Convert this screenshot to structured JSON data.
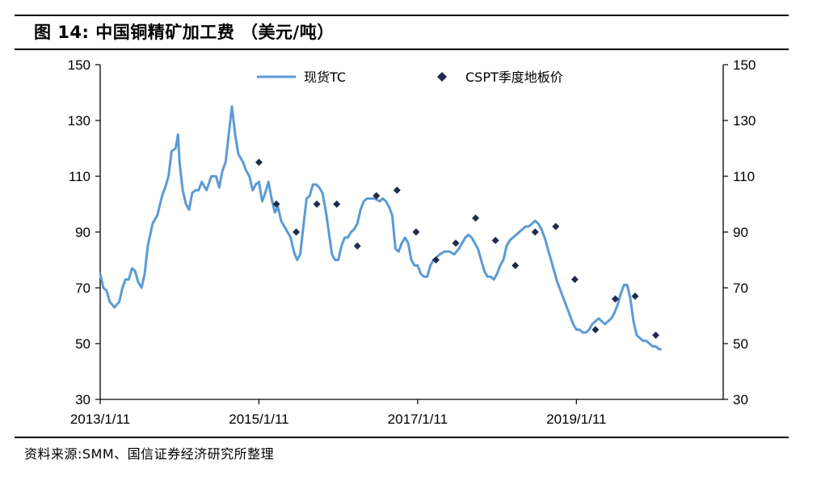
{
  "figure": {
    "title": "图 14:  中国铜精矿加工费  （美元/吨）",
    "source": "资料来源:SMM、国信证券经济研究所整理"
  },
  "colors": {
    "line": "#5b9bd5",
    "marker": "#1f2a4d",
    "axis": "#000000"
  },
  "chart_data": {
    "type": "line",
    "title": "中国铜精矿加工费 （美元/吨）",
    "xlabel": "",
    "ylabel": "",
    "ylim": [
      30,
      150
    ],
    "xlim": [
      2013.0,
      2020.85
    ],
    "y_ticks": [
      "30",
      "50",
      "70",
      "90",
      "110",
      "130",
      "150"
    ],
    "x_tick_labels": [
      {
        "x": 2013.0,
        "label": "2013/1/11"
      },
      {
        "x": 2015.0,
        "label": "2015/1/11"
      },
      {
        "x": 2017.0,
        "label": "2017/1/11"
      },
      {
        "x": 2019.0,
        "label": "2019/1/11"
      }
    ],
    "legend": [
      "现货TC",
      "CSPT季度地板价"
    ],
    "series": [
      {
        "name": "现货TC",
        "kind": "line",
        "points": [
          [
            2013.0,
            75
          ],
          [
            2013.04,
            70
          ],
          [
            2013.08,
            69
          ],
          [
            2013.12,
            65
          ],
          [
            2013.18,
            63
          ],
          [
            2013.24,
            65
          ],
          [
            2013.28,
            70
          ],
          [
            2013.32,
            73
          ],
          [
            2013.36,
            73
          ],
          [
            2013.4,
            77
          ],
          [
            2013.44,
            76
          ],
          [
            2013.48,
            72
          ],
          [
            2013.52,
            70
          ],
          [
            2013.56,
            75
          ],
          [
            2013.6,
            85
          ],
          [
            2013.66,
            93
          ],
          [
            2013.72,
            96
          ],
          [
            2013.78,
            103
          ],
          [
            2013.82,
            106
          ],
          [
            2013.86,
            110
          ],
          [
            2013.9,
            119
          ],
          [
            2013.95,
            120
          ],
          [
            2013.98,
            125
          ],
          [
            2014.0,
            115
          ],
          [
            2014.04,
            105
          ],
          [
            2014.08,
            100
          ],
          [
            2014.12,
            98
          ],
          [
            2014.16,
            104
          ],
          [
            2014.2,
            105
          ],
          [
            2014.24,
            105
          ],
          [
            2014.28,
            108
          ],
          [
            2014.34,
            105
          ],
          [
            2014.4,
            110
          ],
          [
            2014.46,
            110
          ],
          [
            2014.5,
            106
          ],
          [
            2014.54,
            112
          ],
          [
            2014.58,
            115
          ],
          [
            2014.62,
            125
          ],
          [
            2014.66,
            135
          ],
          [
            2014.7,
            125
          ],
          [
            2014.74,
            118
          ],
          [
            2014.8,
            115
          ],
          [
            2014.84,
            112
          ],
          [
            2014.88,
            110
          ],
          [
            2014.92,
            105
          ],
          [
            2014.96,
            107
          ],
          [
            2015.0,
            108
          ],
          [
            2015.04,
            101
          ],
          [
            2015.08,
            104
          ],
          [
            2015.12,
            108
          ],
          [
            2015.16,
            102
          ],
          [
            2015.2,
            97
          ],
          [
            2015.24,
            99
          ],
          [
            2015.28,
            94
          ],
          [
            2015.32,
            92
          ],
          [
            2015.36,
            90
          ],
          [
            2015.4,
            88
          ],
          [
            2015.44,
            83
          ],
          [
            2015.48,
            80
          ],
          [
            2015.52,
            82
          ],
          [
            2015.56,
            92
          ],
          [
            2015.6,
            102
          ],
          [
            2015.64,
            103
          ],
          [
            2015.68,
            107
          ],
          [
            2015.72,
            107
          ],
          [
            2015.76,
            106
          ],
          [
            2015.8,
            104
          ],
          [
            2015.84,
            98
          ],
          [
            2015.88,
            90
          ],
          [
            2015.92,
            82
          ],
          [
            2015.96,
            80
          ],
          [
            2016.0,
            80
          ],
          [
            2016.04,
            85
          ],
          [
            2016.08,
            88
          ],
          [
            2016.12,
            88
          ],
          [
            2016.16,
            90
          ],
          [
            2016.2,
            91
          ],
          [
            2016.24,
            93
          ],
          [
            2016.28,
            98
          ],
          [
            2016.32,
            101
          ],
          [
            2016.36,
            102
          ],
          [
            2016.4,
            102
          ],
          [
            2016.46,
            102
          ],
          [
            2016.52,
            101
          ],
          [
            2016.56,
            102
          ],
          [
            2016.6,
            101
          ],
          [
            2016.64,
            99
          ],
          [
            2016.68,
            96
          ],
          [
            2016.72,
            84
          ],
          [
            2016.76,
            83
          ],
          [
            2016.8,
            86
          ],
          [
            2016.84,
            88
          ],
          [
            2016.88,
            86
          ],
          [
            2016.92,
            80
          ],
          [
            2016.96,
            78
          ],
          [
            2017.0,
            78
          ],
          [
            2017.04,
            75
          ],
          [
            2017.08,
            74
          ],
          [
            2017.12,
            74
          ],
          [
            2017.16,
            78
          ],
          [
            2017.2,
            80
          ],
          [
            2017.24,
            81
          ],
          [
            2017.28,
            82
          ],
          [
            2017.34,
            83
          ],
          [
            2017.4,
            83
          ],
          [
            2017.46,
            82
          ],
          [
            2017.52,
            84
          ],
          [
            2017.56,
            86
          ],
          [
            2017.6,
            88
          ],
          [
            2017.64,
            89
          ],
          [
            2017.68,
            88
          ],
          [
            2017.72,
            86
          ],
          [
            2017.76,
            84
          ],
          [
            2017.8,
            80
          ],
          [
            2017.84,
            76
          ],
          [
            2017.88,
            74
          ],
          [
            2017.92,
            74
          ],
          [
            2017.96,
            73
          ],
          [
            2018.0,
            75
          ],
          [
            2018.04,
            78
          ],
          [
            2018.08,
            80
          ],
          [
            2018.12,
            85
          ],
          [
            2018.16,
            87
          ],
          [
            2018.2,
            88
          ],
          [
            2018.24,
            89
          ],
          [
            2018.28,
            90
          ],
          [
            2018.32,
            91
          ],
          [
            2018.36,
            92
          ],
          [
            2018.4,
            92
          ],
          [
            2018.44,
            93
          ],
          [
            2018.48,
            94
          ],
          [
            2018.52,
            93
          ],
          [
            2018.56,
            91
          ],
          [
            2018.6,
            88
          ],
          [
            2018.64,
            84
          ],
          [
            2018.68,
            80
          ],
          [
            2018.72,
            76
          ],
          [
            2018.76,
            72
          ],
          [
            2018.8,
            69
          ],
          [
            2018.84,
            66
          ],
          [
            2018.88,
            63
          ],
          [
            2018.92,
            60
          ],
          [
            2018.96,
            57
          ],
          [
            2019.0,
            55
          ],
          [
            2019.04,
            55
          ],
          [
            2019.08,
            54
          ],
          [
            2019.12,
            54
          ],
          [
            2019.16,
            55
          ],
          [
            2019.2,
            57
          ],
          [
            2019.24,
            58
          ],
          [
            2019.28,
            59
          ],
          [
            2019.32,
            58
          ],
          [
            2019.36,
            57
          ],
          [
            2019.4,
            58
          ],
          [
            2019.44,
            59
          ],
          [
            2019.48,
            61
          ],
          [
            2019.52,
            64
          ],
          [
            2019.56,
            68
          ],
          [
            2019.6,
            71
          ],
          [
            2019.64,
            71
          ],
          [
            2019.68,
            66
          ],
          [
            2019.72,
            58
          ],
          [
            2019.76,
            53
          ],
          [
            2019.8,
            52
          ],
          [
            2019.84,
            51
          ],
          [
            2019.88,
            51
          ],
          [
            2019.92,
            50
          ],
          [
            2019.96,
            49
          ],
          [
            2020.0,
            49
          ],
          [
            2020.04,
            48
          ],
          [
            2020.06,
            48
          ]
        ]
      },
      {
        "name": "CSPT季度地板价",
        "kind": "marker",
        "points": [
          [
            2015.0,
            115
          ],
          [
            2015.22,
            100
          ],
          [
            2015.47,
            90
          ],
          [
            2015.73,
            100
          ],
          [
            2015.98,
            100
          ],
          [
            2016.24,
            85
          ],
          [
            2016.48,
            103
          ],
          [
            2016.74,
            105
          ],
          [
            2016.98,
            90
          ],
          [
            2017.23,
            80
          ],
          [
            2017.48,
            86
          ],
          [
            2017.73,
            95
          ],
          [
            2017.98,
            87
          ],
          [
            2018.23,
            78
          ],
          [
            2018.48,
            90
          ],
          [
            2018.74,
            92
          ],
          [
            2018.98,
            73
          ],
          [
            2019.24,
            55
          ],
          [
            2019.49,
            66
          ],
          [
            2019.74,
            67
          ],
          [
            2020.0,
            53
          ]
        ]
      }
    ]
  }
}
